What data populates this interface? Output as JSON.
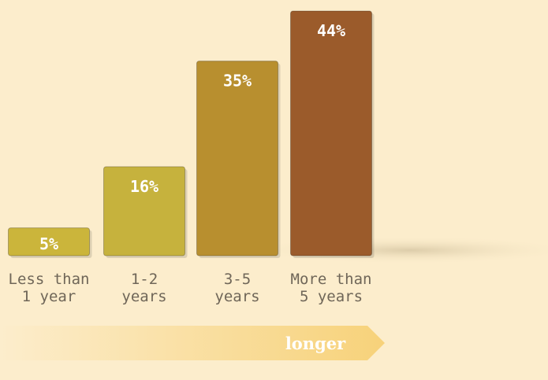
{
  "chart_data": {
    "type": "bar",
    "categories": [
      "Less than\n1 year",
      "1-2\nyears",
      "3-5\nyears",
      "More than\n5 years"
    ],
    "values": [
      5,
      16,
      35,
      44
    ],
    "value_labels": [
      "5%",
      "16%",
      "35%",
      "44%"
    ],
    "colors": [
      "#cbb53b",
      "#c6b23d",
      "#b88f2f",
      "#9b5b2b"
    ],
    "annotation": "longer"
  }
}
